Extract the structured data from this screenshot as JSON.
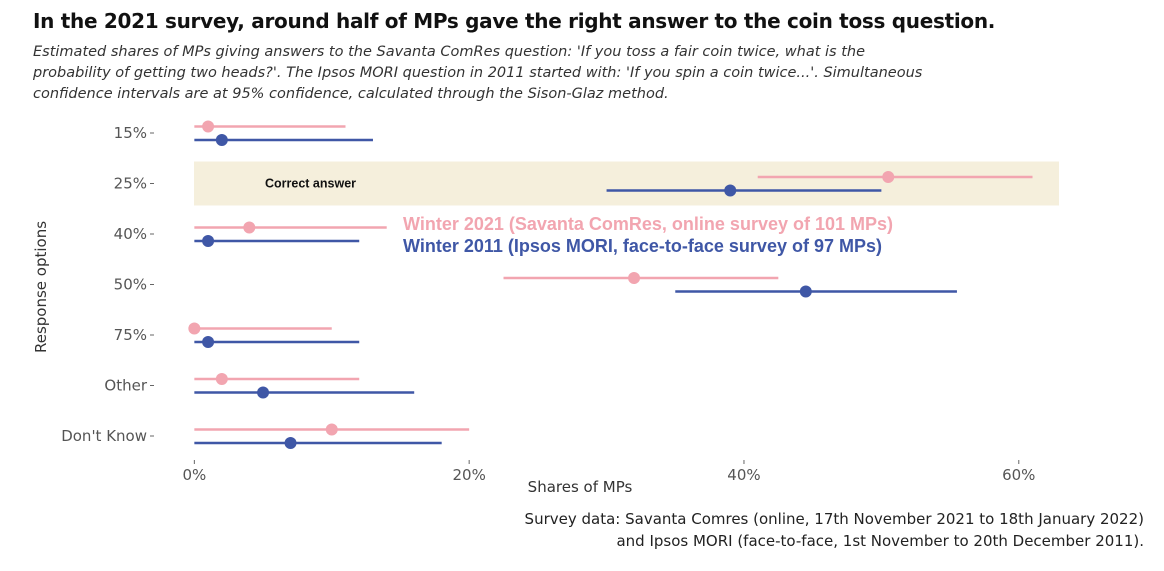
{
  "chart_data": {
    "type": "dot-interval",
    "title": "In the 2021 survey, around half of MPs gave the right answer to the coin toss question.",
    "subtitle": [
      "Estimated shares of MPs giving answers to the Savanta ComRes question: 'If you toss a fair coin twice, what is the",
      "probability of getting two heads?'. The Ipsos MORI question in 2011 started with: 'If you spin a coin twice...'. Simultaneous",
      "confidence intervals are at 95% confidence, calculated through the Sison-Glaz method."
    ],
    "xlabel": "Shares of MPs",
    "ylabel": "Response options",
    "xlim": [
      -2.5,
      63
    ],
    "x_ticks": [
      0,
      20,
      40,
      60
    ],
    "x_tick_labels": [
      "0%",
      "20%",
      "40%",
      "60%"
    ],
    "categories": [
      "15%",
      "25%",
      "40%",
      "50%",
      "75%",
      "Other",
      "Don't Know"
    ],
    "highlight": {
      "category": "25%",
      "label": "Correct answer",
      "color": "#f5efdc"
    },
    "series": [
      {
        "name": "Winter 2021 (Savanta ComRes, online survey of 101 MPs)",
        "color": "#f2a5b0",
        "values": [
          1,
          50.5,
          4,
          32,
          0,
          2,
          10
        ],
        "low": [
          0,
          41,
          0,
          22.5,
          0,
          0,
          0
        ],
        "high": [
          11,
          61,
          14,
          42.5,
          10,
          12,
          20
        ]
      },
      {
        "name": "Winter 2011 (Ipsos MORI, face-to-face survey of 97 MPs)",
        "color": "#3f57a6",
        "values": [
          2,
          39,
          1,
          44.5,
          1,
          5,
          7
        ],
        "low": [
          0,
          30,
          0,
          35,
          0,
          0,
          0
        ],
        "high": [
          13,
          50,
          12,
          55.5,
          12,
          16,
          18
        ]
      }
    ],
    "source": [
      "Survey data: Savanta Comres (online, 17th November 2021 to 18th January 2022)",
      "and Ipsos MORI (face-to-face, 1st November to 20th December 2011)."
    ],
    "grid": false
  }
}
